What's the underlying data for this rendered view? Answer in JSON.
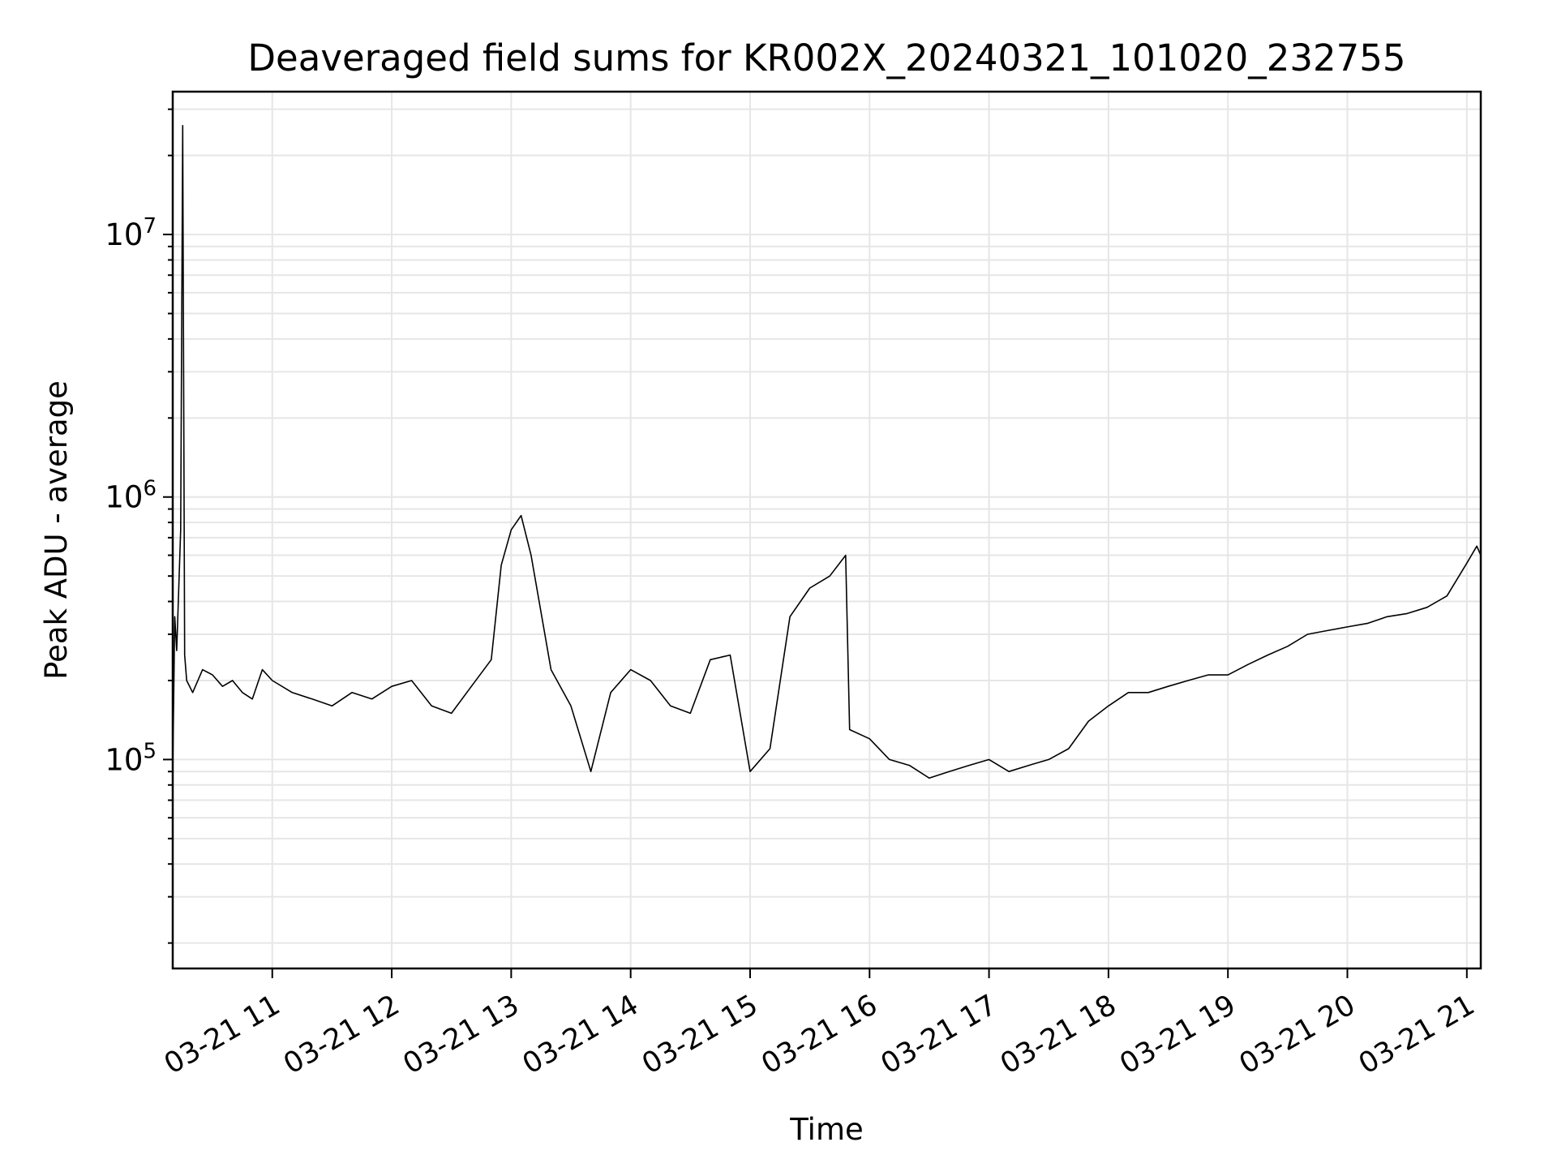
{
  "chart_data": {
    "type": "line",
    "title": "Deaveraged field sums for KR002X_20240321_101020_232755",
    "xlabel": "Time",
    "ylabel": "Peak ADU - average",
    "yscale": "log",
    "ylim": [
      16000,
      35000000
    ],
    "xlim": [
      "2024-03-21 10:10",
      "2024-03-21 21:07"
    ],
    "grid": true,
    "legend": "none",
    "line_color": "#000000",
    "x_ticks": [
      {
        "value": "2024-03-21 11:00",
        "label": "03-21 11"
      },
      {
        "value": "2024-03-21 12:00",
        "label": "03-21 12"
      },
      {
        "value": "2024-03-21 13:00",
        "label": "03-21 13"
      },
      {
        "value": "2024-03-21 14:00",
        "label": "03-21 14"
      },
      {
        "value": "2024-03-21 15:00",
        "label": "03-21 15"
      },
      {
        "value": "2024-03-21 16:00",
        "label": "03-21 16"
      },
      {
        "value": "2024-03-21 17:00",
        "label": "03-21 17"
      },
      {
        "value": "2024-03-21 18:00",
        "label": "03-21 18"
      },
      {
        "value": "2024-03-21 19:00",
        "label": "03-21 19"
      },
      {
        "value": "2024-03-21 20:00",
        "label": "03-21 20"
      },
      {
        "value": "2024-03-21 21:00",
        "label": "03-21 21"
      }
    ],
    "y_ticks": [
      {
        "value": 100000,
        "base": "10",
        "exp": "5"
      },
      {
        "value": 1000000,
        "base": "10",
        "exp": "6"
      },
      {
        "value": 10000000,
        "base": "10",
        "exp": "7"
      }
    ],
    "series": [
      {
        "x": [
          "2024-03-21 10:10",
          "2024-03-21 10:11",
          "2024-03-21 10:12",
          "2024-03-21 10:14",
          "2024-03-21 10:15",
          "2024-03-21 10:16",
          "2024-03-21 10:17",
          "2024-03-21 10:20",
          "2024-03-21 10:25",
          "2024-03-21 10:30",
          "2024-03-21 10:35",
          "2024-03-21 10:40",
          "2024-03-21 10:45",
          "2024-03-21 10:50",
          "2024-03-21 10:55",
          "2024-03-21 11:00",
          "2024-03-21 11:10",
          "2024-03-21 11:20",
          "2024-03-21 11:30",
          "2024-03-21 11:40",
          "2024-03-21 11:50",
          "2024-03-21 12:00",
          "2024-03-21 12:10",
          "2024-03-21 12:20",
          "2024-03-21 12:30",
          "2024-03-21 12:40",
          "2024-03-21 12:50",
          "2024-03-21 12:55",
          "2024-03-21 13:00",
          "2024-03-21 13:05",
          "2024-03-21 13:10",
          "2024-03-21 13:20",
          "2024-03-21 13:30",
          "2024-03-21 13:40",
          "2024-03-21 13:50",
          "2024-03-21 14:00",
          "2024-03-21 14:10",
          "2024-03-21 14:20",
          "2024-03-21 14:30",
          "2024-03-21 14:40",
          "2024-03-21 14:50",
          "2024-03-21 15:00",
          "2024-03-21 15:10",
          "2024-03-21 15:20",
          "2024-03-21 15:30",
          "2024-03-21 15:40",
          "2024-03-21 15:48",
          "2024-03-21 15:50",
          "2024-03-21 16:00",
          "2024-03-21 16:10",
          "2024-03-21 16:20",
          "2024-03-21 16:30",
          "2024-03-21 16:40",
          "2024-03-21 16:50",
          "2024-03-21 17:00",
          "2024-03-21 17:10",
          "2024-03-21 17:20",
          "2024-03-21 17:30",
          "2024-03-21 17:40",
          "2024-03-21 17:50",
          "2024-03-21 18:00",
          "2024-03-21 18:10",
          "2024-03-21 18:20",
          "2024-03-21 18:30",
          "2024-03-21 18:40",
          "2024-03-21 18:50",
          "2024-03-21 19:00",
          "2024-03-21 19:10",
          "2024-03-21 19:20",
          "2024-03-21 19:30",
          "2024-03-21 19:40",
          "2024-03-21 19:50",
          "2024-03-21 20:00",
          "2024-03-21 20:10",
          "2024-03-21 20:20",
          "2024-03-21 20:30",
          "2024-03-21 20:40",
          "2024-03-21 20:50",
          "2024-03-21 21:00",
          "2024-03-21 21:05",
          "2024-03-21 21:07"
        ],
        "y": [
          90000,
          350000,
          260000,
          750000,
          26000000,
          250000,
          200000,
          180000,
          220000,
          210000,
          190000,
          200000,
          180000,
          170000,
          220000,
          200000,
          180000,
          170000,
          160000,
          180000,
          170000,
          190000,
          200000,
          160000,
          150000,
          190000,
          240000,
          550000,
          750000,
          850000,
          600000,
          220000,
          160000,
          90000,
          180000,
          220000,
          200000,
          160000,
          150000,
          240000,
          250000,
          90000,
          110000,
          350000,
          450000,
          500000,
          600000,
          130000,
          120000,
          100000,
          95000,
          85000,
          90000,
          95000,
          100000,
          90000,
          95000,
          100000,
          110000,
          140000,
          160000,
          180000,
          180000,
          190000,
          200000,
          210000,
          210000,
          230000,
          250000,
          270000,
          300000,
          310000,
          320000,
          330000,
          350000,
          360000,
          380000,
          420000,
          560000,
          650000,
          600000
        ]
      }
    ]
  }
}
